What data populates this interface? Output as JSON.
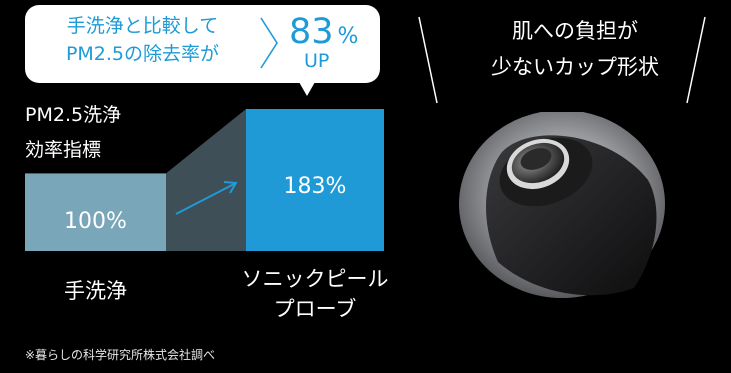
{
  "callout": {
    "line1": "手洗浄と比較して",
    "line2": "PM2.5の除去率が",
    "increase_value": "83",
    "increase_unit": "%",
    "increase_suffix": "UP"
  },
  "chart_data": {
    "type": "bar",
    "ylabel_line1": "PM2.5洗浄",
    "ylabel_line2": "効率指標",
    "categories": [
      {
        "line1": "手洗浄",
        "line2": ""
      },
      {
        "line1": "ソニックピール",
        "line2": "プローブ"
      }
    ],
    "values": [
      100,
      183
    ],
    "value_labels": [
      "100%",
      "183%"
    ],
    "colors": [
      "#7aa6b9",
      "#1f9ad6"
    ],
    "connector_color": "#3e4f58"
  },
  "product": {
    "caption_line1": "肌への負担が",
    "caption_line2": "少ないカップ形状",
    "image": "probe-cup-photo"
  },
  "footnote": "※暮らしの科学研究所株式会社調べ"
}
